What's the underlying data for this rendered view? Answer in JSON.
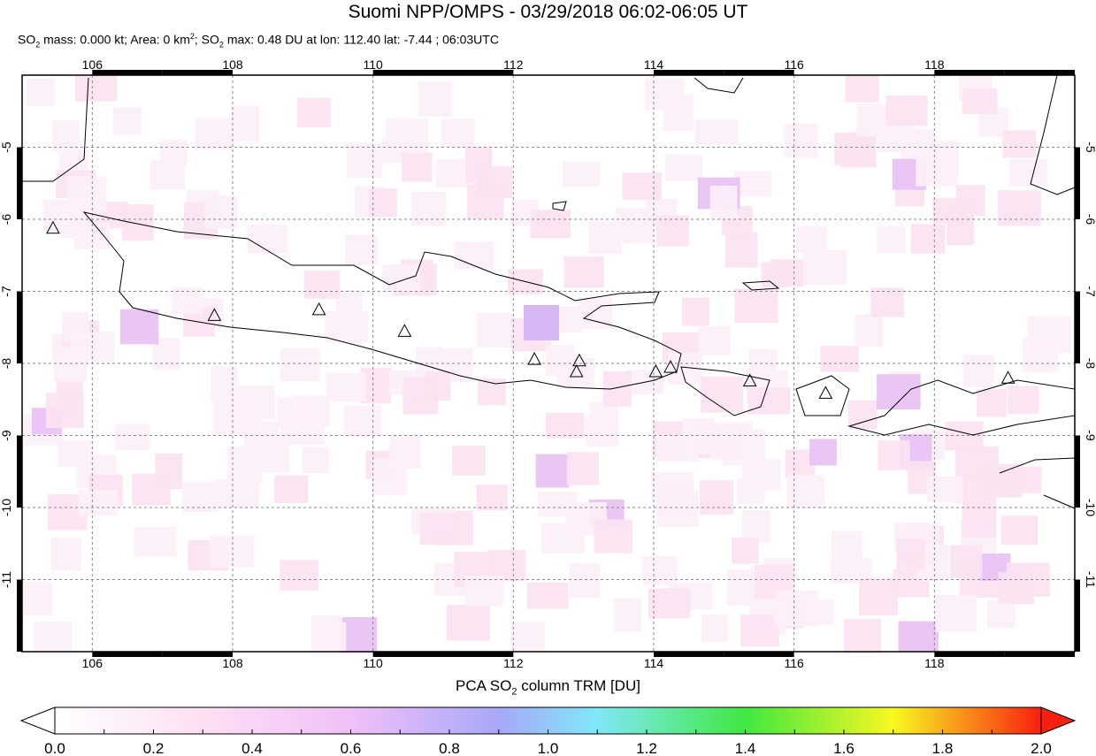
{
  "title": "Suomi NPP/OMPS - 03/29/2018 06:02-06:05 UT",
  "subtitle": {
    "p1": "SO",
    "p2": " mass: 0.000 kt; Area: 0 km",
    "p3": "; SO",
    "p4": " max: 0.48 DU at lon: 112.40 lat: -7.44 ; 06:03UTC"
  },
  "map": {
    "lon_range": [
      105,
      120
    ],
    "lat_range": [
      -12,
      -4
    ],
    "lon_ticks": [
      "106",
      "108",
      "110",
      "112",
      "114",
      "116",
      "118"
    ],
    "lat_ticks": [
      "-5",
      "-6",
      "-7",
      "-8",
      "-9",
      "-10",
      "-11"
    ],
    "volcanoes": [
      [
        105.44,
        -6.12
      ],
      [
        107.74,
        -7.33
      ],
      [
        109.23,
        -7.25
      ],
      [
        110.45,
        -7.55
      ],
      [
        112.3,
        -7.94
      ],
      [
        112.94,
        -7.96
      ],
      [
        112.9,
        -8.11
      ],
      [
        114.03,
        -8.11
      ],
      [
        114.24,
        -8.05
      ],
      [
        115.37,
        -8.24
      ],
      [
        116.45,
        -8.41
      ],
      [
        119.05,
        -8.2
      ]
    ],
    "max_so2_du": 0.48
  },
  "colorbar": {
    "label_a": "PCA SO",
    "label_b": " column TRM [DU]",
    "ticks": [
      "0.0",
      "0.2",
      "0.4",
      "0.6",
      "0.8",
      "1.0",
      "1.2",
      "1.4",
      "1.6",
      "1.8",
      "2.0"
    ],
    "colors": [
      "#ffffff",
      "#fde0f4",
      "#f0c0f8",
      "#a8a8f8",
      "#80e8f8",
      "#40e840",
      "#f8f820",
      "#f82010"
    ]
  }
}
